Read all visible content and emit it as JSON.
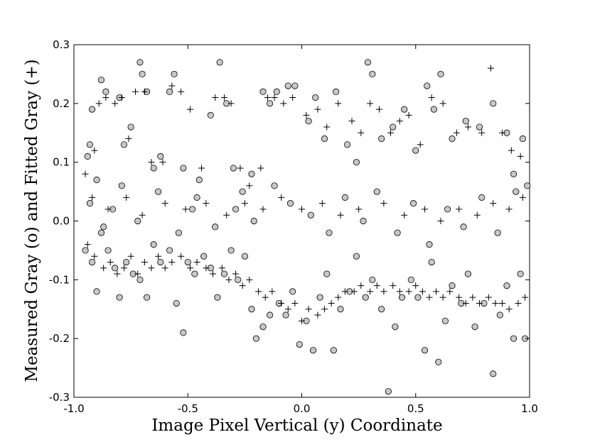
{
  "chart_data": {
    "type": "scatter",
    "title": "",
    "xlabel": "Image Pixel Vertical (y)  Coordinate",
    "ylabel": "Measured Gray (o) and Fitted Gray (+)",
    "xlim": [
      -1.0,
      1.0
    ],
    "ylim": [
      -0.3,
      0.3
    ],
    "xticks": [
      -1.0,
      -0.5,
      0.0,
      0.5,
      1.0
    ],
    "xtick_labels": [
      "-1.0",
      "-0.5",
      "0.0",
      "0.5",
      "1.0"
    ],
    "yticks": [
      -0.3,
      -0.2,
      -0.1,
      0.0,
      0.1,
      0.2,
      0.3
    ],
    "ytick_labels": [
      "-0.3",
      "-0.2",
      "-0.1",
      "0.0",
      "0.1",
      "0.2",
      "0.3"
    ],
    "grid": false,
    "legend": "none",
    "colors": {
      "measured_fill": "#c8c8c8",
      "marker_stroke": "#000000"
    },
    "series": [
      {
        "marker": "o",
        "points": [
          [
            -0.94,
            0.11
          ],
          [
            -0.93,
            0.13
          ],
          [
            -0.92,
            0.19
          ],
          [
            -0.9,
            0.07
          ],
          [
            -0.88,
            0.24
          ],
          [
            -0.86,
            0.22
          ],
          [
            -0.83,
            0.02
          ],
          [
            -0.8,
            0.21
          ],
          [
            -0.78,
            0.13
          ],
          [
            -0.75,
            0.16
          ],
          [
            -0.71,
            0.27
          ],
          [
            -0.7,
            0.25
          ],
          [
            -0.68,
            0.22
          ],
          [
            -0.65,
            0.09
          ],
          [
            -0.62,
            0.11
          ],
          [
            -0.58,
            0.22
          ],
          [
            -0.56,
            0.25
          ],
          [
            -0.52,
            0.09
          ],
          [
            -0.48,
            0.02
          ],
          [
            -0.45,
            0.07
          ],
          [
            -0.4,
            0.18
          ],
          [
            -0.36,
            0.27
          ],
          [
            -0.33,
            0.2
          ],
          [
            -0.3,
            0.09
          ],
          [
            -0.26,
            0.05
          ],
          [
            -0.22,
            0.08
          ],
          [
            -0.17,
            0.22
          ],
          [
            -0.14,
            0.2
          ],
          [
            -0.11,
            0.22
          ],
          [
            -0.06,
            0.23
          ],
          [
            -0.03,
            0.23
          ],
          [
            0.03,
            0.17
          ],
          [
            0.06,
            0.21
          ],
          [
            0.1,
            0.14
          ],
          [
            0.15,
            0.22
          ],
          [
            0.2,
            0.13
          ],
          [
            0.24,
            0.1
          ],
          [
            0.29,
            0.27
          ],
          [
            0.31,
            0.25
          ],
          [
            0.35,
            0.14
          ],
          [
            0.4,
            0.16
          ],
          [
            0.45,
            0.19
          ],
          [
            0.5,
            0.12
          ],
          [
            0.55,
            0.23
          ],
          [
            0.58,
            0.19
          ],
          [
            0.61,
            0.25
          ],
          [
            0.66,
            0.14
          ],
          [
            0.72,
            0.17
          ],
          [
            0.78,
            0.16
          ],
          [
            0.84,
            0.2
          ],
          [
            0.9,
            0.15
          ],
          [
            0.93,
            0.08
          ],
          [
            0.97,
            0.14
          ],
          [
            0.99,
            0.06
          ],
          [
            -0.95,
            -0.05
          ],
          [
            -0.92,
            -0.07
          ],
          [
            -0.9,
            -0.12
          ],
          [
            -0.88,
            -0.02
          ],
          [
            -0.85,
            -0.05
          ],
          [
            -0.82,
            -0.08
          ],
          [
            -0.8,
            -0.13
          ],
          [
            -0.77,
            -0.07
          ],
          [
            -0.74,
            -0.09
          ],
          [
            -0.71,
            -0.1
          ],
          [
            -0.68,
            -0.13
          ],
          [
            -0.65,
            -0.04
          ],
          [
            -0.62,
            -0.07
          ],
          [
            -0.58,
            -0.05
          ],
          [
            -0.55,
            -0.14
          ],
          [
            -0.52,
            -0.19
          ],
          [
            -0.5,
            -0.07
          ],
          [
            -0.47,
            -0.09
          ],
          [
            -0.43,
            -0.06
          ],
          [
            -0.4,
            -0.08
          ],
          [
            -0.37,
            -0.13
          ],
          [
            -0.34,
            -0.09
          ],
          [
            -0.31,
            -0.05
          ],
          [
            -0.28,
            -0.1
          ],
          [
            -0.25,
            -0.06
          ],
          [
            -0.22,
            -0.15
          ],
          [
            -0.2,
            -0.2
          ],
          [
            -0.17,
            -0.18
          ],
          [
            -0.14,
            -0.16
          ],
          [
            -0.1,
            -0.14
          ],
          [
            -0.07,
            -0.16
          ],
          [
            -0.04,
            -0.12
          ],
          [
            -0.01,
            -0.21
          ],
          [
            0.02,
            -0.17
          ],
          [
            0.05,
            -0.22
          ],
          [
            0.08,
            -0.13
          ],
          [
            0.11,
            -0.09
          ],
          [
            0.14,
            -0.22
          ],
          [
            0.17,
            -0.15
          ],
          [
            0.21,
            -0.12
          ],
          [
            0.24,
            -0.06
          ],
          [
            0.28,
            -0.13
          ],
          [
            0.31,
            -0.1
          ],
          [
            0.35,
            -0.15
          ],
          [
            0.38,
            -0.29
          ],
          [
            0.41,
            -0.18
          ],
          [
            0.44,
            -0.13
          ],
          [
            0.48,
            -0.1
          ],
          [
            0.51,
            -0.13
          ],
          [
            0.54,
            -0.22
          ],
          [
            0.57,
            -0.07
          ],
          [
            0.6,
            -0.24
          ],
          [
            0.63,
            -0.17
          ],
          [
            0.66,
            -0.11
          ],
          [
            0.7,
            -0.14
          ],
          [
            0.73,
            -0.09
          ],
          [
            0.76,
            -0.18
          ],
          [
            0.8,
            -0.14
          ],
          [
            0.84,
            -0.26
          ],
          [
            0.87,
            -0.16
          ],
          [
            0.9,
            -0.11
          ],
          [
            0.93,
            -0.2
          ],
          [
            0.96,
            -0.09
          ],
          [
            0.98,
            -0.2
          ],
          [
            -0.93,
            0.03
          ],
          [
            -0.87,
            -0.01
          ],
          [
            -0.79,
            0.06
          ],
          [
            -0.72,
            0.0
          ],
          [
            -0.63,
            0.05
          ],
          [
            -0.54,
            -0.02
          ],
          [
            -0.46,
            0.04
          ],
          [
            -0.38,
            -0.01
          ],
          [
            -0.29,
            0.02
          ],
          [
            -0.21,
            0.0
          ],
          [
            -0.12,
            0.06
          ],
          [
            -0.05,
            0.03
          ],
          [
            0.04,
            0.01
          ],
          [
            0.12,
            -0.02
          ],
          [
            0.19,
            0.04
          ],
          [
            0.27,
            0.0
          ],
          [
            0.33,
            0.05
          ],
          [
            0.42,
            -0.02
          ],
          [
            0.49,
            0.03
          ],
          [
            0.56,
            -0.04
          ],
          [
            0.64,
            0.02
          ],
          [
            0.71,
            -0.01
          ],
          [
            0.79,
            0.04
          ],
          [
            0.86,
            -0.02
          ],
          [
            0.94,
            0.05
          ]
        ]
      },
      {
        "marker": "+",
        "points": [
          [
            -0.95,
            0.08
          ],
          [
            -0.91,
            0.12
          ],
          [
            -0.89,
            0.2
          ],
          [
            -0.86,
            0.21
          ],
          [
            -0.82,
            0.2
          ],
          [
            -0.79,
            0.21
          ],
          [
            -0.76,
            0.14
          ],
          [
            -0.73,
            0.22
          ],
          [
            -0.69,
            0.22
          ],
          [
            -0.66,
            0.1
          ],
          [
            -0.61,
            0.1
          ],
          [
            -0.57,
            0.23
          ],
          [
            -0.53,
            0.22
          ],
          [
            -0.49,
            0.19
          ],
          [
            -0.44,
            0.09
          ],
          [
            -0.38,
            0.21
          ],
          [
            -0.34,
            0.21
          ],
          [
            -0.31,
            0.2
          ],
          [
            -0.27,
            0.09
          ],
          [
            -0.23,
            0.06
          ],
          [
            -0.18,
            0.09
          ],
          [
            -0.15,
            0.21
          ],
          [
            -0.12,
            0.21
          ],
          [
            -0.08,
            0.2
          ],
          [
            -0.04,
            0.21
          ],
          [
            0.02,
            0.18
          ],
          [
            0.07,
            0.19
          ],
          [
            0.11,
            0.16
          ],
          [
            0.16,
            0.2
          ],
          [
            0.22,
            0.17
          ],
          [
            0.26,
            0.15
          ],
          [
            0.3,
            0.2
          ],
          [
            0.34,
            0.19
          ],
          [
            0.39,
            0.15
          ],
          [
            0.43,
            0.17
          ],
          [
            0.47,
            0.18
          ],
          [
            0.52,
            0.13
          ],
          [
            0.57,
            0.21
          ],
          [
            0.62,
            0.2
          ],
          [
            0.68,
            0.15
          ],
          [
            0.73,
            0.16
          ],
          [
            0.79,
            0.15
          ],
          [
            0.83,
            0.26
          ],
          [
            0.88,
            0.15
          ],
          [
            0.92,
            0.12
          ],
          [
            0.96,
            0.11
          ],
          [
            -0.94,
            -0.04
          ],
          [
            -0.91,
            -0.06
          ],
          [
            -0.87,
            -0.08
          ],
          [
            -0.84,
            -0.07
          ],
          [
            -0.81,
            -0.09
          ],
          [
            -0.78,
            -0.08
          ],
          [
            -0.75,
            -0.06
          ],
          [
            -0.72,
            -0.09
          ],
          [
            -0.69,
            -0.07
          ],
          [
            -0.66,
            -0.08
          ],
          [
            -0.63,
            -0.06
          ],
          [
            -0.6,
            -0.08
          ],
          [
            -0.57,
            -0.07
          ],
          [
            -0.53,
            -0.06
          ],
          [
            -0.49,
            -0.08
          ],
          [
            -0.46,
            -0.07
          ],
          [
            -0.42,
            -0.08
          ],
          [
            -0.39,
            -0.09
          ],
          [
            -0.35,
            -0.08
          ],
          [
            -0.32,
            -0.1
          ],
          [
            -0.29,
            -0.09
          ],
          [
            -0.26,
            -0.11
          ],
          [
            -0.23,
            -0.1
          ],
          [
            -0.19,
            -0.12
          ],
          [
            -0.16,
            -0.13
          ],
          [
            -0.13,
            -0.12
          ],
          [
            -0.09,
            -0.14
          ],
          [
            -0.06,
            -0.15
          ],
          [
            -0.03,
            -0.14
          ],
          [
            0.0,
            -0.17
          ],
          [
            0.03,
            -0.15
          ],
          [
            0.07,
            -0.16
          ],
          [
            0.1,
            -0.15
          ],
          [
            0.13,
            -0.14
          ],
          [
            0.16,
            -0.13
          ],
          [
            0.19,
            -0.12
          ],
          [
            0.23,
            -0.12
          ],
          [
            0.26,
            -0.11
          ],
          [
            0.3,
            -0.12
          ],
          [
            0.33,
            -0.11
          ],
          [
            0.36,
            -0.12
          ],
          [
            0.4,
            -0.11
          ],
          [
            0.43,
            -0.12
          ],
          [
            0.47,
            -0.12
          ],
          [
            0.5,
            -0.11
          ],
          [
            0.53,
            -0.12
          ],
          [
            0.56,
            -0.13
          ],
          [
            0.59,
            -0.12
          ],
          [
            0.62,
            -0.13
          ],
          [
            0.65,
            -0.12
          ],
          [
            0.69,
            -0.13
          ],
          [
            0.72,
            -0.14
          ],
          [
            0.75,
            -0.13
          ],
          [
            0.78,
            -0.14
          ],
          [
            0.82,
            -0.13
          ],
          [
            0.85,
            -0.14
          ],
          [
            0.88,
            -0.14
          ],
          [
            0.91,
            -0.15
          ],
          [
            0.95,
            -0.14
          ],
          [
            0.98,
            -0.13
          ],
          [
            -0.92,
            0.04
          ],
          [
            -0.85,
            0.02
          ],
          [
            -0.77,
            0.04
          ],
          [
            -0.7,
            0.01
          ],
          [
            -0.6,
            0.03
          ],
          [
            -0.51,
            0.02
          ],
          [
            -0.42,
            0.03
          ],
          [
            -0.33,
            0.01
          ],
          [
            -0.25,
            0.03
          ],
          [
            -0.17,
            0.02
          ],
          [
            -0.09,
            0.04
          ],
          [
            0.0,
            0.02
          ],
          [
            0.09,
            0.03
          ],
          [
            0.17,
            0.01
          ],
          [
            0.25,
            0.02
          ],
          [
            0.36,
            0.03
          ],
          [
            0.45,
            0.01
          ],
          [
            0.54,
            0.02
          ],
          [
            0.61,
            0.0
          ],
          [
            0.69,
            0.02
          ],
          [
            0.77,
            0.01
          ],
          [
            0.84,
            0.03
          ],
          [
            0.91,
            0.02
          ],
          [
            0.97,
            0.04
          ]
        ]
      }
    ]
  }
}
